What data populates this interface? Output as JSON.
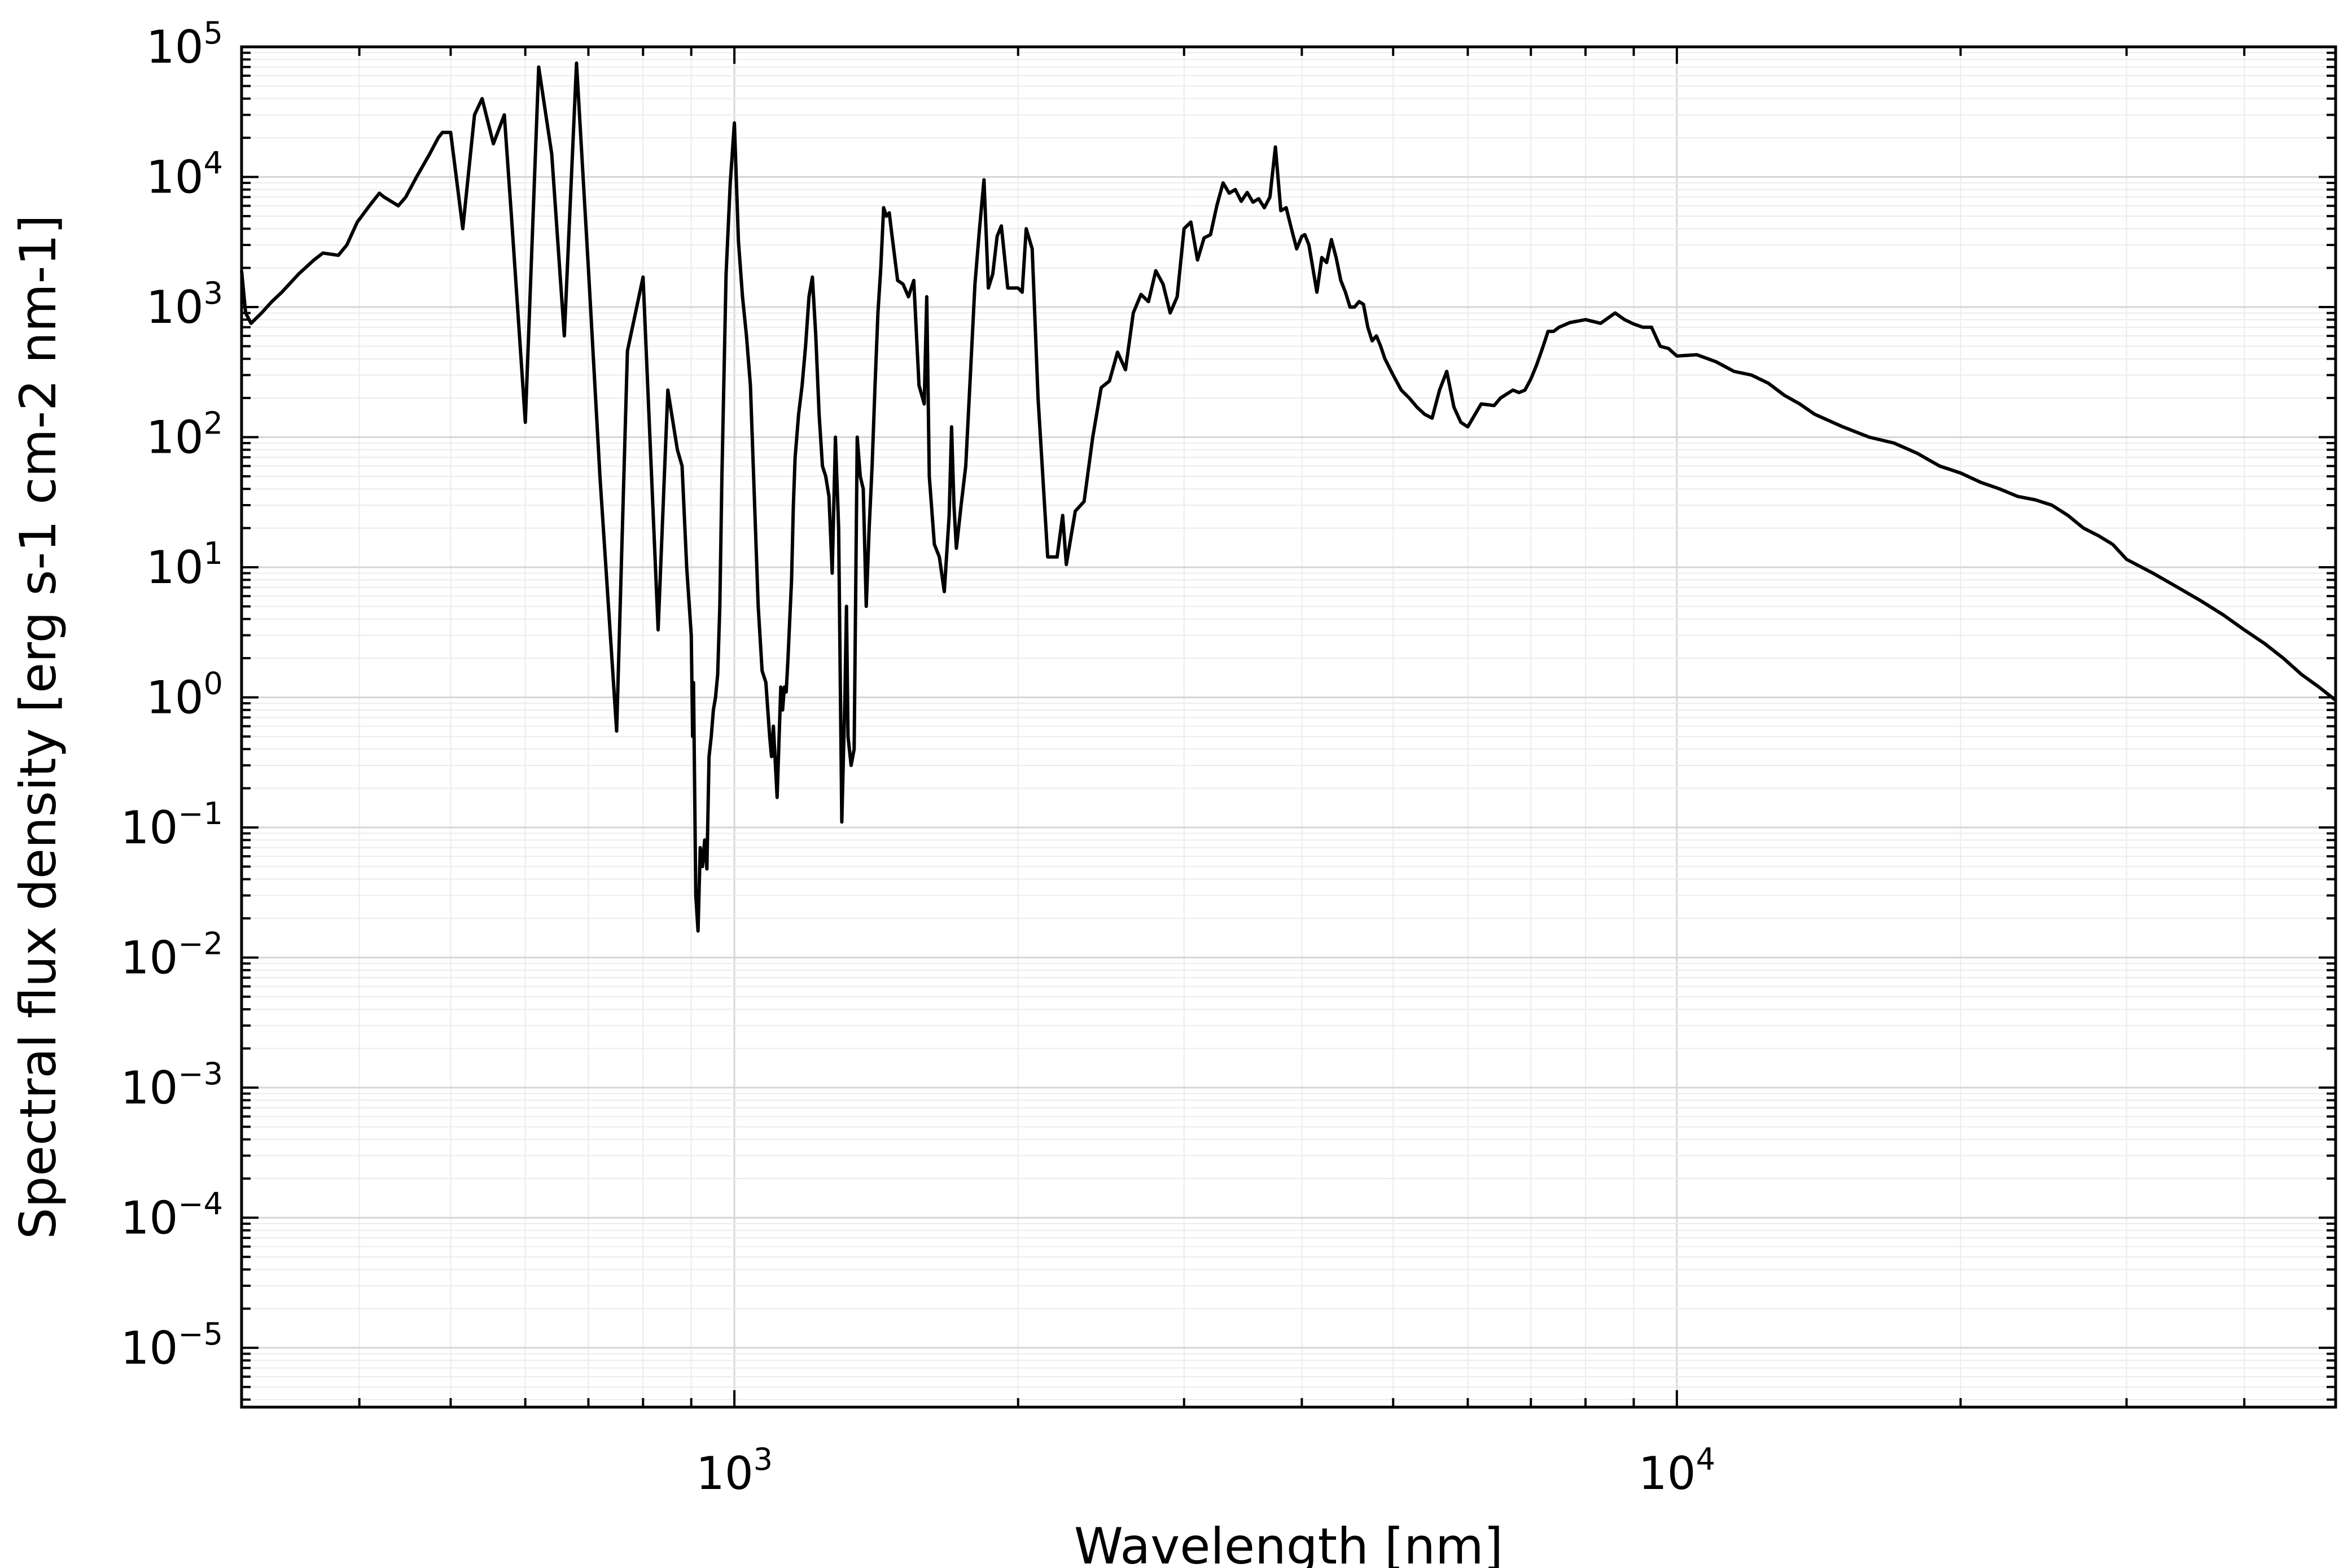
{
  "chart_data": {
    "type": "line",
    "title": "",
    "xlabel": "Wavelength [nm]",
    "ylabel": "Spectral flux density [erg s-1 cm-2 nm-1]",
    "xscale": "log",
    "yscale": "log",
    "xlim": [
      300,
      50000
    ],
    "ylim": [
      3.5e-06,
      100000
    ],
    "grid": true,
    "legend": "none",
    "line_color": "#000000",
    "x_ticks": [
      {
        "value": 1000,
        "base": "10",
        "exp": "3"
      },
      {
        "value": 10000,
        "base": "10",
        "exp": "4"
      }
    ],
    "y_ticks": [
      {
        "value": 1e-05,
        "base": "10",
        "exp": "−5"
      },
      {
        "value": 0.0001,
        "base": "10",
        "exp": "−4"
      },
      {
        "value": 0.001,
        "base": "10",
        "exp": "−3"
      },
      {
        "value": 0.01,
        "base": "10",
        "exp": "−2"
      },
      {
        "value": 0.1,
        "base": "10",
        "exp": "−1"
      },
      {
        "value": 1,
        "base": "10",
        "exp": "0"
      },
      {
        "value": 10,
        "base": "10",
        "exp": "1"
      },
      {
        "value": 100,
        "base": "10",
        "exp": "2"
      },
      {
        "value": 1000,
        "base": "10",
        "exp": "3"
      },
      {
        "value": 10000,
        "base": "10",
        "exp": "4"
      },
      {
        "value": 100000,
        "base": "10",
        "exp": "5"
      }
    ],
    "series": [
      {
        "x": [
          300,
          303,
          307,
          315,
          323,
          331,
          345,
          358,
          366,
          380,
          388,
          398,
          410,
          420,
          425,
          440,
          448,
          460,
          475,
          485,
          490,
          500,
          515,
          530,
          540,
          555,
          570,
          580,
          600,
          620,
          640,
          660,
          680,
          700,
          720,
          750,
          770,
          800,
          830,
          850,
          870,
          880,
          890,
          900,
          903,
          905,
          910,
          915,
          920,
          925,
          930,
          935,
          940,
          945,
          950,
          955,
          960,
          965,
          970,
          980,
          990,
          1000,
          1010,
          1020,
          1030,
          1040,
          1060,
          1070,
          1080,
          1090,
          1095,
          1100,
          1110,
          1120,
          1125,
          1130,
          1135,
          1140,
          1150,
          1155,
          1160,
          1170,
          1180,
          1190,
          1200,
          1210,
          1220,
          1230,
          1240,
          1250,
          1260,
          1270,
          1280,
          1290,
          1300,
          1310,
          1315,
          1320,
          1330,
          1340,
          1350,
          1360,
          1370,
          1380,
          1390,
          1400,
          1410,
          1420,
          1430,
          1440,
          1450,
          1460,
          1470,
          1490,
          1510,
          1530,
          1550,
          1570,
          1590,
          1600,
          1610,
          1630,
          1650,
          1670,
          1690,
          1700,
          1710,
          1720,
          1740,
          1760,
          1780,
          1800,
          1820,
          1840,
          1860,
          1880,
          1900,
          1920,
          1950,
          2000,
          2020,
          2040,
          2070,
          2100,
          2150,
          2200,
          2230,
          2250,
          2300,
          2350,
          2400,
          2450,
          2500,
          2550,
          2600,
          2650,
          2700,
          2750,
          2800,
          2850,
          2900,
          2950,
          3000,
          3050,
          3100,
          3150,
          3200,
          3250,
          3300,
          3350,
          3400,
          3450,
          3500,
          3550,
          3600,
          3650,
          3700,
          3750,
          3800,
          3850,
          3900,
          3950,
          4000,
          4030,
          4070,
          4100,
          4150,
          4200,
          4250,
          4300,
          4350,
          4400,
          4450,
          4500,
          4550,
          4600,
          4650,
          4700,
          4750,
          4800,
          4850,
          4900,
          5000,
          5100,
          5200,
          5300,
          5400,
          5500,
          5600,
          5700,
          5800,
          5900,
          6000,
          6200,
          6400,
          6500,
          6700,
          6800,
          6900,
          7000,
          7100,
          7200,
          7300,
          7400,
          7500,
          7700,
          8000,
          8300,
          8600,
          8800,
          9000,
          9200,
          9400,
          9600,
          9800,
          10000,
          10500,
          11000,
          11500,
          12000,
          12500,
          13000,
          13500,
          14000,
          15000,
          16000,
          17000,
          18000,
          19000,
          20000,
          21000,
          22000,
          23000,
          24000,
          25000,
          26000,
          27000,
          28000,
          29000,
          30000,
          32000,
          34000,
          36000,
          38000,
          40000,
          42000,
          44000,
          46000,
          48000,
          50000
        ],
        "y": [
          1900,
          900,
          750,
          900,
          1100,
          1300,
          1800,
          2300,
          2600,
          2500,
          3000,
          4500,
          6000,
          7500,
          7000,
          6000,
          7000,
          10000,
          15000,
          20000,
          22000,
          22000,
          4000,
          30000,
          40000,
          18000,
          30000,
          5000,
          130,
          70000,
          15000,
          600,
          75000,
          2000,
          50,
          0.55,
          460,
          1700,
          3.3,
          230,
          80,
          60,
          10,
          3,
          0.5,
          1.3,
          0.03,
          0.016,
          0.07,
          0.05,
          0.08,
          0.048,
          0.35,
          0.5,
          0.8,
          1,
          1.5,
          5,
          50,
          1800,
          9000,
          26000,
          3200,
          1200,
          600,
          250,
          5,
          1.6,
          1.3,
          0.5,
          0.35,
          0.6,
          0.17,
          1.2,
          0.8,
          1.2,
          1.1,
          2,
          8,
          30,
          70,
          150,
          250,
          500,
          1200,
          1700,
          600,
          150,
          60,
          50,
          35,
          9,
          100,
          20,
          0.11,
          1,
          5,
          0.5,
          0.3,
          0.4,
          100,
          50,
          40,
          5,
          20,
          60,
          250,
          900,
          2000,
          5800,
          5000,
          5300,
          3500,
          1600,
          1500,
          1200,
          1600,
          250,
          180,
          1200,
          50,
          15,
          12,
          6.5,
          25,
          120,
          30,
          14,
          30,
          60,
          300,
          1500,
          4000,
          9500,
          1400,
          1800,
          3500,
          4200,
          1400,
          1400,
          1300,
          4000,
          2800,
          200,
          12,
          12,
          25,
          10.5,
          27,
          32,
          100,
          240,
          270,
          450,
          330,
          900,
          1250,
          1100,
          1900,
          1500,
          900,
          1200,
          4000,
          4500,
          2300,
          3400,
          3600,
          6000,
          9000,
          7500,
          8000,
          6500,
          7600,
          6400,
          6800,
          5800,
          7000,
          17000,
          5500,
          5800,
          4000,
          2800,
          3500,
          3600,
          3000,
          2200,
          1300,
          2400,
          2200,
          3300,
          2400,
          1600,
          1300,
          1000,
          1000,
          1100,
          1050,
          700,
          550,
          600,
          500,
          400,
          300,
          230,
          200,
          170,
          150,
          140,
          230,
          320,
          170,
          130,
          120,
          180,
          175,
          200,
          230,
          220,
          230,
          280,
          360,
          480,
          650,
          650,
          700,
          760,
          800,
          750,
          900,
          800,
          740,
          700,
          700,
          500,
          480,
          420,
          430,
          380,
          320,
          300,
          260,
          210,
          180,
          150,
          120,
          100,
          90,
          75,
          60,
          53,
          45,
          40,
          35,
          33,
          30,
          25,
          20,
          17.5,
          15,
          11.5,
          9,
          7,
          5.5,
          4.3,
          3.3,
          2.6,
          2,
          1.5,
          1.2,
          0.95
        ]
      }
    ]
  }
}
